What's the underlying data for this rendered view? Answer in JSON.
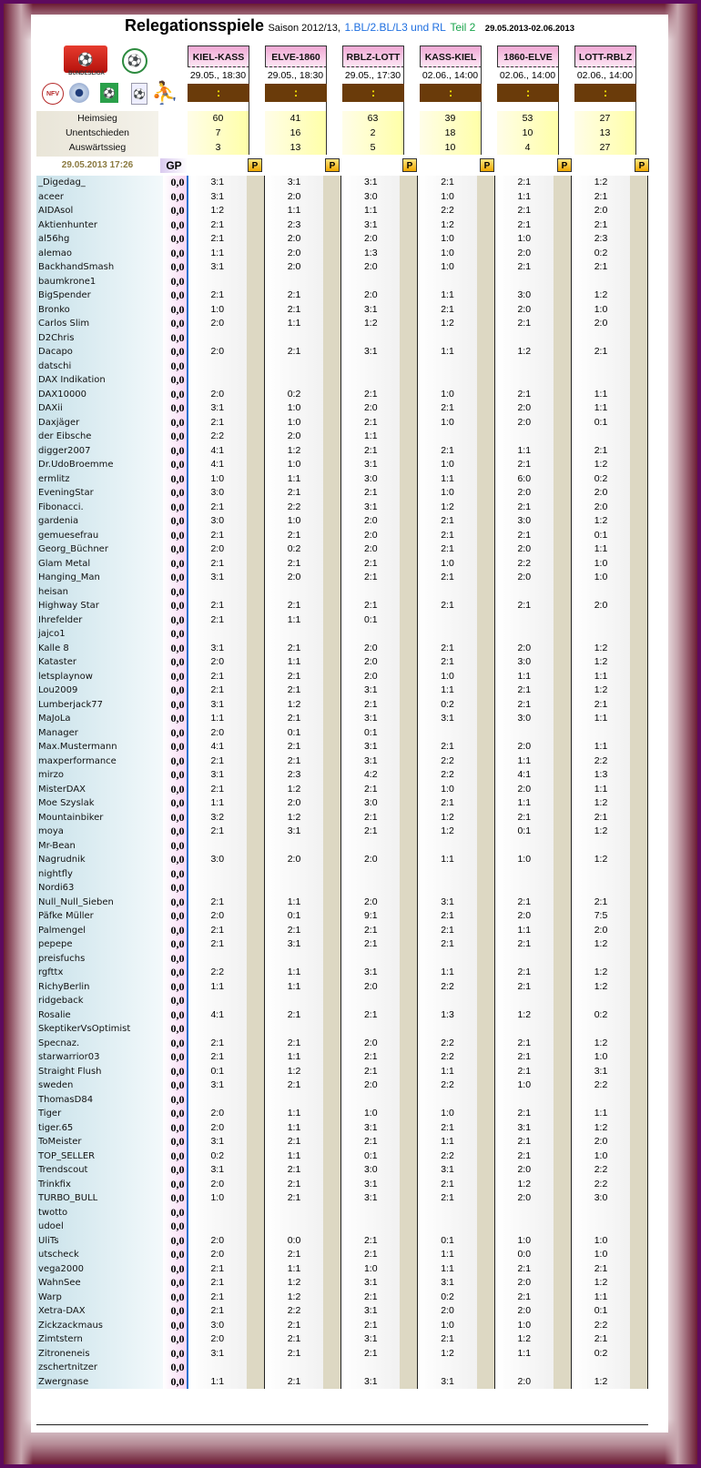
{
  "title": {
    "main": "Relegationsspiele",
    "season": "Saison 2012/13,",
    "leagues": "1.BL/2.BL/L3 und RL",
    "part": "Teil 2",
    "dates": "29.05.2013-02.06.2013"
  },
  "logos": {
    "bundesliga": "BUNDESLIGA",
    "bundesliga_mark": "⚽",
    "dfb": "⚽",
    "nfv": "NFV",
    "green": "⚽",
    "blue": "⚽",
    "runner": "⛹"
  },
  "stats_labels": [
    "Heimsieg",
    "Unentschieden",
    "Auswärtssieg"
  ],
  "timestamp": "29.05.2013 17:26",
  "gp_label": "GP",
  "p_label": "P",
  "matches": [
    {
      "name": "KIEL-KASS",
      "date": "29.05., 18:30",
      "result": ":",
      "home": "60",
      "draw": "7",
      "away": "3"
    },
    {
      "name": "ELVE-1860",
      "date": "29.05., 18:30",
      "result": ":",
      "home": "41",
      "draw": "16",
      "away": "13"
    },
    {
      "name": "RBLZ-LOTT",
      "date": "29.05., 17:30",
      "result": ":",
      "home": "63",
      "draw": "2",
      "away": "5"
    },
    {
      "name": "KASS-KIEL",
      "date": "02.06., 14:00",
      "result": ":",
      "home": "39",
      "draw": "18",
      "away": "10"
    },
    {
      "name": "1860-ELVE",
      "date": "02.06., 14:00",
      "result": ":",
      "home": "53",
      "draw": "10",
      "away": "4"
    },
    {
      "name": "LOTT-RBLZ",
      "date": "02.06., 14:00",
      "result": ":",
      "home": "27",
      "draw": "13",
      "away": "27"
    }
  ],
  "players": [
    {
      "name": "_Digedag_",
      "gp": "0,0",
      "tips": [
        "3:1",
        "3:1",
        "3:1",
        "2:1",
        "2:1",
        "1:2"
      ]
    },
    {
      "name": "aceer",
      "gp": "0,0",
      "tips": [
        "3:1",
        "2:0",
        "3:0",
        "1:0",
        "1:1",
        "2:1"
      ]
    },
    {
      "name": "AIDAsol",
      "gp": "0,0",
      "tips": [
        "1:2",
        "1:1",
        "1:1",
        "2:2",
        "2:1",
        "2:0"
      ]
    },
    {
      "name": "Aktienhunter",
      "gp": "0,0",
      "tips": [
        "2:1",
        "2:3",
        "3:1",
        "1:2",
        "2:1",
        "2:1"
      ]
    },
    {
      "name": "al56hg",
      "gp": "0,0",
      "tips": [
        "2:1",
        "2:0",
        "2:0",
        "1:0",
        "1:0",
        "2:3"
      ]
    },
    {
      "name": "alemao",
      "gp": "0,0",
      "tips": [
        "1:1",
        "2:0",
        "1:3",
        "1:0",
        "2:0",
        "0:2"
      ]
    },
    {
      "name": "BackhandSmash",
      "gp": "0,0",
      "tips": [
        "3:1",
        "2:0",
        "2:0",
        "1:0",
        "2:1",
        "2:1"
      ]
    },
    {
      "name": "baumkrone1",
      "gp": "0,0",
      "tips": [
        "",
        "",
        "",
        "",
        "",
        ""
      ]
    },
    {
      "name": "BigSpender",
      "gp": "0,0",
      "tips": [
        "2:1",
        "2:1",
        "2:0",
        "1:1",
        "3:0",
        "1:2"
      ]
    },
    {
      "name": "Bronko",
      "gp": "0,0",
      "tips": [
        "1:0",
        "2:1",
        "3:1",
        "2:1",
        "2:0",
        "1:0"
      ]
    },
    {
      "name": "Carlos Slim",
      "gp": "0,0",
      "tips": [
        "2:0",
        "1:1",
        "1:2",
        "1:2",
        "2:1",
        "2:0"
      ]
    },
    {
      "name": "D2Chris",
      "gp": "0,0",
      "tips": [
        "",
        "",
        "",
        "",
        "",
        ""
      ]
    },
    {
      "name": "Dacapo",
      "gp": "0,0",
      "tips": [
        "2:0",
        "2:1",
        "3:1",
        "1:1",
        "1:2",
        "2:1"
      ]
    },
    {
      "name": "datschi",
      "gp": "0,0",
      "tips": [
        "",
        "",
        "",
        "",
        "",
        ""
      ]
    },
    {
      "name": "DAX Indikation",
      "gp": "0,0",
      "tips": [
        "",
        "",
        "",
        "",
        "",
        ""
      ]
    },
    {
      "name": "DAX10000",
      "gp": "0,0",
      "tips": [
        "2:0",
        "0:2",
        "2:1",
        "1:0",
        "2:1",
        "1:1"
      ]
    },
    {
      "name": "DAXii",
      "gp": "0,0",
      "tips": [
        "3:1",
        "1:0",
        "2:0",
        "2:1",
        "2:0",
        "1:1"
      ]
    },
    {
      "name": "Daxjäger",
      "gp": "0,0",
      "tips": [
        "2:1",
        "1:0",
        "2:1",
        "1:0",
        "2:0",
        "0:1"
      ]
    },
    {
      "name": "der Eibsche",
      "gp": "0,0",
      "tips": [
        "2:2",
        "2:0",
        "1:1",
        "",
        "",
        ""
      ]
    },
    {
      "name": "digger2007",
      "gp": "0,0",
      "tips": [
        "4:1",
        "1:2",
        "2:1",
        "2:1",
        "1:1",
        "2:1"
      ]
    },
    {
      "name": "Dr.UdoBroemme",
      "gp": "0,0",
      "tips": [
        "4:1",
        "1:0",
        "3:1",
        "1:0",
        "2:1",
        "1:2"
      ]
    },
    {
      "name": "ermlitz",
      "gp": "0,0",
      "tips": [
        "1:0",
        "1:1",
        "3:0",
        "1:1",
        "6:0",
        "0:2"
      ]
    },
    {
      "name": "EveningStar",
      "gp": "0,0",
      "tips": [
        "3:0",
        "2:1",
        "2:1",
        "1:0",
        "2:0",
        "2:0"
      ]
    },
    {
      "name": "Fibonacci.",
      "gp": "0,0",
      "tips": [
        "2:1",
        "2:2",
        "3:1",
        "1:2",
        "2:1",
        "2:0"
      ]
    },
    {
      "name": "gardenia",
      "gp": "0,0",
      "tips": [
        "3:0",
        "1:0",
        "2:0",
        "2:1",
        "3:0",
        "1:2"
      ]
    },
    {
      "name": "gemuesefrau",
      "gp": "0,0",
      "tips": [
        "2:1",
        "2:1",
        "2:0",
        "2:1",
        "2:1",
        "0:1"
      ]
    },
    {
      "name": "Georg_Büchner",
      "gp": "0,0",
      "tips": [
        "2:0",
        "0:2",
        "2:0",
        "2:1",
        "2:0",
        "1:1"
      ]
    },
    {
      "name": "Glam Metal",
      "gp": "0,0",
      "tips": [
        "2:1",
        "2:1",
        "2:1",
        "1:0",
        "2:2",
        "1:0"
      ]
    },
    {
      "name": "Hanging_Man",
      "gp": "0,0",
      "tips": [
        "3:1",
        "2:0",
        "2:1",
        "2:1",
        "2:0",
        "1:0"
      ]
    },
    {
      "name": "heisan",
      "gp": "0,0",
      "tips": [
        "",
        "",
        "",
        "",
        "",
        ""
      ]
    },
    {
      "name": "Highway Star",
      "gp": "0,0",
      "tips": [
        "2:1",
        "2:1",
        "2:1",
        "2:1",
        "2:1",
        "2:0"
      ]
    },
    {
      "name": "Ihrefelder",
      "gp": "0,0",
      "tips": [
        "2:1",
        "1:1",
        "0:1",
        "",
        "",
        ""
      ]
    },
    {
      "name": "jajco1",
      "gp": "0,0",
      "tips": [
        "",
        "",
        "",
        "",
        "",
        ""
      ]
    },
    {
      "name": "Kalle 8",
      "gp": "0,0",
      "tips": [
        "3:1",
        "2:1",
        "2:0",
        "2:1",
        "2:0",
        "1:2"
      ]
    },
    {
      "name": "Kataster",
      "gp": "0,0",
      "tips": [
        "2:0",
        "1:1",
        "2:0",
        "2:1",
        "3:0",
        "1:2"
      ]
    },
    {
      "name": "letsplaynow",
      "gp": "0,0",
      "tips": [
        "2:1",
        "2:1",
        "2:0",
        "1:0",
        "1:1",
        "1:1"
      ]
    },
    {
      "name": "Lou2009",
      "gp": "0,0",
      "tips": [
        "2:1",
        "2:1",
        "3:1",
        "1:1",
        "2:1",
        "1:2"
      ]
    },
    {
      "name": "Lumberjack77",
      "gp": "0,0",
      "tips": [
        "3:1",
        "1:2",
        "2:1",
        "0:2",
        "2:1",
        "2:1"
      ]
    },
    {
      "name": "MaJoLa",
      "gp": "0,0",
      "tips": [
        "1:1",
        "2:1",
        "3:1",
        "3:1",
        "3:0",
        "1:1"
      ]
    },
    {
      "name": "Manager",
      "gp": "0,0",
      "tips": [
        "2:0",
        "0:1",
        "0:1",
        "",
        "",
        ""
      ]
    },
    {
      "name": "Max.Mustermann",
      "gp": "0,0",
      "tips": [
        "4:1",
        "2:1",
        "3:1",
        "2:1",
        "2:0",
        "1:1"
      ]
    },
    {
      "name": "maxperformance",
      "gp": "0,0",
      "tips": [
        "2:1",
        "2:1",
        "3:1",
        "2:2",
        "1:1",
        "2:2"
      ]
    },
    {
      "name": "mirzo",
      "gp": "0,0",
      "tips": [
        "3:1",
        "2:3",
        "4:2",
        "2:2",
        "4:1",
        "1:3"
      ]
    },
    {
      "name": "MisterDAX",
      "gp": "0,0",
      "tips": [
        "2:1",
        "1:2",
        "2:1",
        "1:0",
        "2:0",
        "1:1"
      ]
    },
    {
      "name": "Moe Szyslak",
      "gp": "0,0",
      "tips": [
        "1:1",
        "2:0",
        "3:0",
        "2:1",
        "1:1",
        "1:2"
      ]
    },
    {
      "name": "Mountainbiker",
      "gp": "0,0",
      "tips": [
        "3:2",
        "1:2",
        "2:1",
        "1:2",
        "2:1",
        "2:1"
      ]
    },
    {
      "name": "moya",
      "gp": "0,0",
      "tips": [
        "2:1",
        "3:1",
        "2:1",
        "1:2",
        "0:1",
        "1:2"
      ]
    },
    {
      "name": "Mr-Bean",
      "gp": "0,0",
      "tips": [
        "",
        "",
        "",
        "",
        "",
        ""
      ]
    },
    {
      "name": "Nagrudnik",
      "gp": "0,0",
      "tips": [
        "3:0",
        "2:0",
        "2:0",
        "1:1",
        "1:0",
        "1:2"
      ]
    },
    {
      "name": "nightfly",
      "gp": "0,0",
      "tips": [
        "",
        "",
        "",
        "",
        "",
        ""
      ]
    },
    {
      "name": "Nordi63",
      "gp": "0,0",
      "tips": [
        "",
        "",
        "",
        "",
        "",
        ""
      ]
    },
    {
      "name": "Null_Null_Sieben",
      "gp": "0,0",
      "tips": [
        "2:1",
        "1:1",
        "2:0",
        "3:1",
        "2:1",
        "2:1"
      ]
    },
    {
      "name": "Päfke Müller",
      "gp": "0,0",
      "tips": [
        "2:0",
        "0:1",
        "9:1",
        "2:1",
        "2:0",
        "7:5"
      ]
    },
    {
      "name": "Palmengel",
      "gp": "0,0",
      "tips": [
        "2:1",
        "2:1",
        "2:1",
        "2:1",
        "1:1",
        "2:0"
      ]
    },
    {
      "name": "pepepe",
      "gp": "0,0",
      "tips": [
        "2:1",
        "3:1",
        "2:1",
        "2:1",
        "2:1",
        "1:2"
      ]
    },
    {
      "name": "preisfuchs",
      "gp": "0,0",
      "tips": [
        "",
        "",
        "",
        "",
        "",
        ""
      ]
    },
    {
      "name": "rgfttx",
      "gp": "0,0",
      "tips": [
        "2:2",
        "1:1",
        "3:1",
        "1:1",
        "2:1",
        "1:2"
      ]
    },
    {
      "name": "RichyBerlin",
      "gp": "0,0",
      "tips": [
        "1:1",
        "1:1",
        "2:0",
        "2:2",
        "2:1",
        "1:2"
      ]
    },
    {
      "name": "ridgeback",
      "gp": "0,0",
      "tips": [
        "",
        "",
        "",
        "",
        "",
        ""
      ]
    },
    {
      "name": "Rosalie",
      "gp": "0,0",
      "tips": [
        "4:1",
        "2:1",
        "2:1",
        "1:3",
        "1:2",
        "0:2"
      ]
    },
    {
      "name": "SkeptikerVsOptimist",
      "gp": "0,0",
      "tips": [
        "",
        "",
        "",
        "",
        "",
        ""
      ]
    },
    {
      "name": "Specnaz.",
      "gp": "0,0",
      "tips": [
        "2:1",
        "2:1",
        "2:0",
        "2:2",
        "2:1",
        "1:2"
      ]
    },
    {
      "name": "starwarrior03",
      "gp": "0,0",
      "tips": [
        "2:1",
        "1:1",
        "2:1",
        "2:2",
        "2:1",
        "1:0"
      ]
    },
    {
      "name": "Straight Flush",
      "gp": "0,0",
      "tips": [
        "0:1",
        "1:2",
        "2:1",
        "1:1",
        "2:1",
        "3:1"
      ]
    },
    {
      "name": "sweden",
      "gp": "0,0",
      "tips": [
        "3:1",
        "2:1",
        "2:0",
        "2:2",
        "1:0",
        "2:2"
      ]
    },
    {
      "name": "ThomasD84",
      "gp": "0,0",
      "tips": [
        "",
        "",
        "",
        "",
        "",
        ""
      ]
    },
    {
      "name": "Tiger",
      "gp": "0,0",
      "tips": [
        "2:0",
        "1:1",
        "1:0",
        "1:0",
        "2:1",
        "1:1"
      ]
    },
    {
      "name": "tiger.65",
      "gp": "0,0",
      "tips": [
        "2:0",
        "1:1",
        "3:1",
        "2:1",
        "3:1",
        "1:2"
      ]
    },
    {
      "name": "ToMeister",
      "gp": "0,0",
      "tips": [
        "3:1",
        "2:1",
        "2:1",
        "1:1",
        "2:1",
        "2:0"
      ]
    },
    {
      "name": "TOP_SELLER",
      "gp": "0,0",
      "tips": [
        "0:2",
        "1:1",
        "0:1",
        "2:2",
        "2:1",
        "1:0"
      ]
    },
    {
      "name": "Trendscout",
      "gp": "0,0",
      "tips": [
        "3:1",
        "2:1",
        "3:0",
        "3:1",
        "2:0",
        "2:2"
      ]
    },
    {
      "name": "Trinkfix",
      "gp": "0,0",
      "tips": [
        "2:0",
        "2:1",
        "3:1",
        "2:1",
        "1:2",
        "2:2"
      ]
    },
    {
      "name": "TURBO_BULL",
      "gp": "0,0",
      "tips": [
        "1:0",
        "2:1",
        "3:1",
        "2:1",
        "2:0",
        "3:0"
      ]
    },
    {
      "name": "twotto",
      "gp": "0,0",
      "tips": [
        "",
        "",
        "",
        "",
        "",
        ""
      ]
    },
    {
      "name": "udoel",
      "gp": "0,0",
      "tips": [
        "",
        "",
        "",
        "",
        "",
        ""
      ]
    },
    {
      "name": "UliTs",
      "gp": "0,0",
      "tips": [
        "2:0",
        "0:0",
        "2:1",
        "0:1",
        "1:0",
        "1:0"
      ]
    },
    {
      "name": "utscheck",
      "gp": "0,0",
      "tips": [
        "2:0",
        "2:1",
        "2:1",
        "1:1",
        "0:0",
        "1:0"
      ]
    },
    {
      "name": "vega2000",
      "gp": "0,0",
      "tips": [
        "2:1",
        "1:1",
        "1:0",
        "1:1",
        "2:1",
        "2:1"
      ]
    },
    {
      "name": "WahnSee",
      "gp": "0,0",
      "tips": [
        "2:1",
        "1:2",
        "3:1",
        "3:1",
        "2:0",
        "1:2"
      ]
    },
    {
      "name": "Warp",
      "gp": "0,0",
      "tips": [
        "2:1",
        "1:2",
        "2:1",
        "0:2",
        "2:1",
        "1:1"
      ]
    },
    {
      "name": "Xetra-DAX",
      "gp": "0,0",
      "tips": [
        "2:1",
        "2:2",
        "3:1",
        "2:0",
        "2:0",
        "0:1"
      ]
    },
    {
      "name": "Zickzackmaus",
      "gp": "0,0",
      "tips": [
        "3:0",
        "2:1",
        "2:1",
        "1:0",
        "1:0",
        "2:2"
      ]
    },
    {
      "name": "Zimtstern",
      "gp": "0,0",
      "tips": [
        "2:0",
        "2:1",
        "3:1",
        "2:1",
        "1:2",
        "2:1"
      ]
    },
    {
      "name": "Zitroneneis",
      "gp": "0,0",
      "tips": [
        "3:1",
        "2:1",
        "2:1",
        "1:2",
        "1:1",
        "0:2"
      ]
    },
    {
      "name": "zschertnitzer",
      "gp": "0,0",
      "tips": [
        "",
        "",
        "",
        "",
        "",
        ""
      ]
    },
    {
      "name": "Zwergnase",
      "gp": "0,0",
      "tips": [
        "1:1",
        "2:1",
        "3:1",
        "3:1",
        "2:0",
        "1:2"
      ]
    }
  ]
}
